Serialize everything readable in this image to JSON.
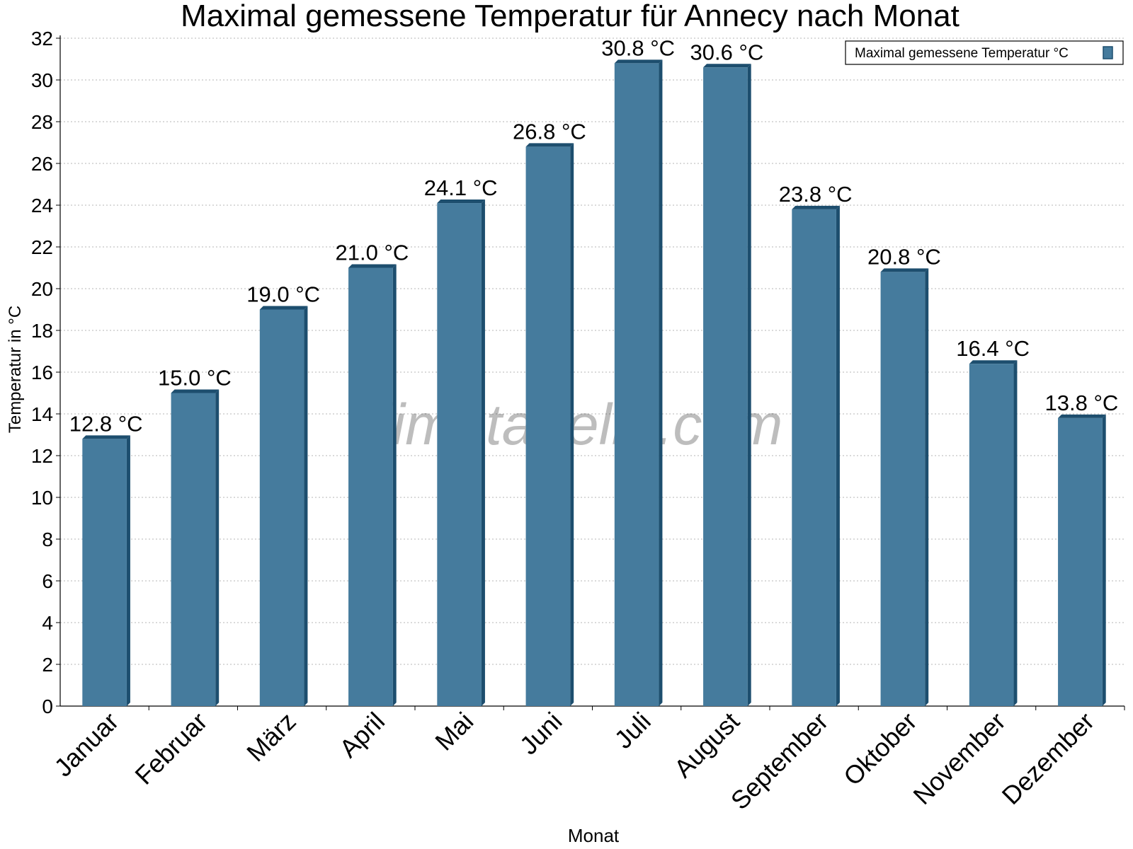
{
  "chart_data": {
    "type": "bar",
    "title": "Maximal gemessene Temperatur für Annecy nach Monat",
    "xlabel": "Monat",
    "ylabel": "Temperatur in °C",
    "ylim": [
      0,
      32
    ],
    "yticks": [
      "0",
      "2",
      "4",
      "6",
      "8",
      "10",
      "12",
      "14",
      "16",
      "18",
      "20",
      "22",
      "24",
      "26",
      "28",
      "30",
      "32"
    ],
    "grid": true,
    "legend_position": "top-right",
    "categories": [
      "Januar",
      "Februar",
      "März",
      "April",
      "Mai",
      "Juni",
      "Juli",
      "August",
      "September",
      "Oktober",
      "November",
      "Dezember"
    ],
    "series": [
      {
        "name": "Maximal gemessene Temperatur °C",
        "values": [
          12.8,
          15.0,
          19.0,
          21.0,
          24.1,
          26.8,
          30.8,
          30.6,
          23.8,
          20.8,
          16.4,
          13.8
        ],
        "labels": [
          "12.8 °C",
          "15.0 °C",
          "19.0 °C",
          "21.0 °C",
          "24.1 °C",
          "26.8 °C",
          "30.8 °C",
          "30.6 °C",
          "23.8 °C",
          "20.8 °C",
          "16.4 °C",
          "13.8 °C"
        ],
        "color": "#457b9d",
        "shade_color": "#1d4e6e"
      }
    ],
    "watermark": "klimatabelle.com"
  }
}
